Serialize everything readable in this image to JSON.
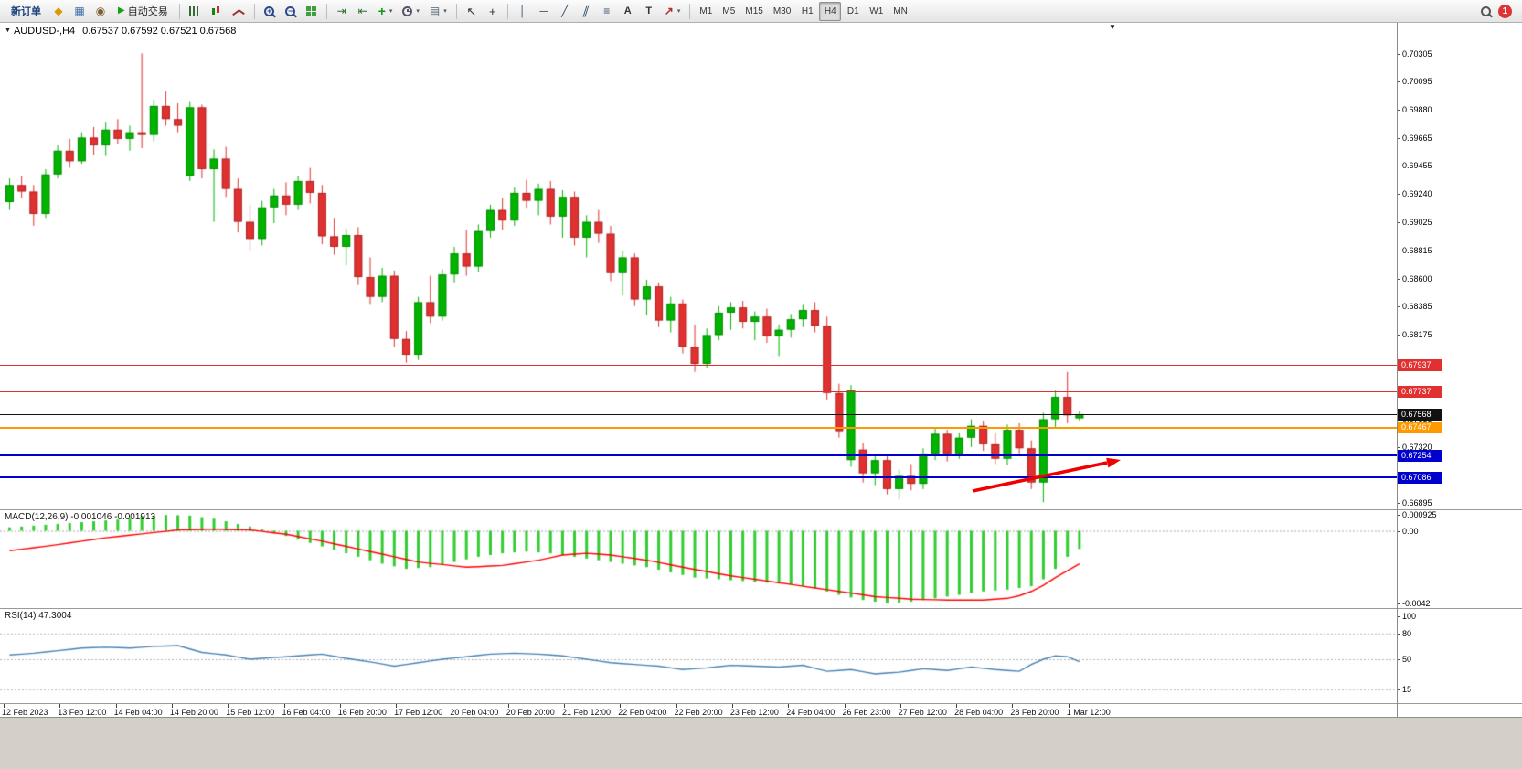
{
  "window": {
    "badge_count": "1"
  },
  "colors": {
    "up": "#00b400",
    "down": "#e03030",
    "macd_bar": "#32cd32",
    "macd_signal": "#ff0000",
    "rsi_line": "#4682b4",
    "arrow": "#f00000"
  },
  "icons": {
    "market_watch": "◆",
    "data_window": "▦",
    "navigator": "◉",
    "play": "▶",
    "zoom_in_sign": "+",
    "zoom_out_sign": "−",
    "auto_scroll": "⇥",
    "chart_shift": "⇤",
    "indicators_add": "+",
    "templates": "▤",
    "cursor": "↖",
    "crosshair": "+",
    "vertical_line": "│",
    "horizontal_line": "─",
    "trendline": "╱",
    "channel": "∥",
    "fibonacci": "≡",
    "text": "A",
    "text_label": "T",
    "arrows": "↗",
    "dropdown_caret": "▾",
    "symbol_caret": "▼",
    "shift_marker": "▼"
  },
  "toolbar": {
    "new_order_label": "新订单",
    "auto_trading_label": "自动交易",
    "timeframes": [
      "M1",
      "M5",
      "M15",
      "M30",
      "H1",
      "H4",
      "D1",
      "W1",
      "MN"
    ],
    "active_timeframe": "H4"
  },
  "chart": {
    "title_symbol": "AUDUSD-,H4",
    "title_ohlc": "0.67537 0.67592 0.67521 0.67568",
    "price_axis_labels": [
      "0.70305",
      "0.70095",
      "0.69880",
      "0.69665",
      "0.69455",
      "0.69240",
      "0.69025",
      "0.68815",
      "0.68600",
      "0.68385",
      "0.68175",
      "0.67960",
      "0.67745",
      "0.67535",
      "0.67320",
      "0.67105",
      "0.66895"
    ],
    "hlines": [
      {
        "name": "resistance-1",
        "price": 0.67937,
        "label": "0.67937",
        "color": "#e03030",
        "width": 1
      },
      {
        "name": "resistance-2",
        "price": 0.67737,
        "label": "0.67737",
        "color": "#e03030",
        "width": 1
      },
      {
        "name": "last-price",
        "price": 0.67568,
        "label": "0.67568",
        "color": "#111111",
        "width": 1
      },
      {
        "name": "pivot",
        "price": 0.67467,
        "label": "0.67467",
        "color": "#ff9900",
        "width": 2
      },
      {
        "name": "support-1",
        "price": 0.67254,
        "label": "0.67254",
        "color": "#0000cc",
        "width": 2
      },
      {
        "name": "support-2",
        "price": 0.67086,
        "label": "0.67086",
        "color": "#0000cc",
        "width": 2
      }
    ],
    "time_axis_labels": [
      "12 Feb 2023",
      "13 Feb 12:00",
      "14 Feb 04:00",
      "14 Feb 20:00",
      "15 Feb 12:00",
      "16 Feb 04:00",
      "16 Feb 20:00",
      "17 Feb 12:00",
      "20 Feb 04:00",
      "20 Feb 20:00",
      "21 Feb 12:00",
      "22 Feb 04:00",
      "22 Feb 20:00",
      "23 Feb 12:00",
      "24 Feb 04:00",
      "26 Feb 23:00",
      "27 Feb 12:00",
      "28 Feb 04:00",
      "28 Feb 20:00",
      "1 Mar 12:00"
    ]
  },
  "macd": {
    "label": "MACD(12,26,9) -0.001046 -0.001913",
    "axis_labels": [
      "0.000925",
      "0.00",
      "-0.0042"
    ]
  },
  "rsi": {
    "label": "RSI(14) 47.3004",
    "axis_labels": [
      "100",
      "80",
      "50",
      "15"
    ]
  },
  "chart_data": [
    {
      "type": "candlestick",
      "title": "AUDUSD-,H4",
      "ylim": [
        0.66895,
        0.70305
      ],
      "up_color": "#00b400",
      "down_color": "#e03030",
      "ohlc": [
        [
          0.6918,
          0.6936,
          0.6912,
          0.6931
        ],
        [
          0.6931,
          0.6938,
          0.6921,
          0.6926
        ],
        [
          0.6926,
          0.6931,
          0.69,
          0.6909
        ],
        [
          0.6909,
          0.6943,
          0.6906,
          0.6939
        ],
        [
          0.6939,
          0.6961,
          0.6936,
          0.6957
        ],
        [
          0.6957,
          0.6966,
          0.6944,
          0.6949
        ],
        [
          0.6949,
          0.6971,
          0.6947,
          0.6967
        ],
        [
          0.6967,
          0.6975,
          0.6954,
          0.6961
        ],
        [
          0.6961,
          0.6979,
          0.6953,
          0.6973
        ],
        [
          0.6973,
          0.6981,
          0.6962,
          0.6966
        ],
        [
          0.6966,
          0.6976,
          0.6957,
          0.6971
        ],
        [
          0.6971,
          0.7031,
          0.6959,
          0.6969
        ],
        [
          0.6969,
          0.6996,
          0.6964,
          0.6991
        ],
        [
          0.6991,
          0.7002,
          0.6976,
          0.6981
        ],
        [
          0.6981,
          0.6993,
          0.6971,
          0.6976
        ],
        [
          0.6938,
          0.6994,
          0.6934,
          0.699
        ],
        [
          0.699,
          0.6992,
          0.6936,
          0.6943
        ],
        [
          0.6943,
          0.6958,
          0.6903,
          0.6951
        ],
        [
          0.6951,
          0.696,
          0.6922,
          0.6928
        ],
        [
          0.6928,
          0.6936,
          0.6895,
          0.6903
        ],
        [
          0.6903,
          0.6916,
          0.6881,
          0.689
        ],
        [
          0.689,
          0.6919,
          0.6885,
          0.6914
        ],
        [
          0.6914,
          0.6928,
          0.6902,
          0.6923
        ],
        [
          0.6923,
          0.6933,
          0.6908,
          0.6916
        ],
        [
          0.6916,
          0.6938,
          0.6912,
          0.6934
        ],
        [
          0.6934,
          0.6944,
          0.6917,
          0.6925
        ],
        [
          0.6925,
          0.6931,
          0.6886,
          0.6892
        ],
        [
          0.6892,
          0.6906,
          0.6878,
          0.6884
        ],
        [
          0.6884,
          0.6898,
          0.687,
          0.6893
        ],
        [
          0.6893,
          0.6899,
          0.6855,
          0.6861
        ],
        [
          0.6861,
          0.6876,
          0.684,
          0.6846
        ],
        [
          0.6846,
          0.6868,
          0.6842,
          0.6862
        ],
        [
          0.6862,
          0.6866,
          0.6808,
          0.6814
        ],
        [
          0.6814,
          0.682,
          0.6796,
          0.6802
        ],
        [
          0.6802,
          0.6846,
          0.6798,
          0.6842
        ],
        [
          0.6842,
          0.6862,
          0.6826,
          0.6831
        ],
        [
          0.6831,
          0.6867,
          0.6828,
          0.6863
        ],
        [
          0.6863,
          0.6884,
          0.6857,
          0.6879
        ],
        [
          0.6879,
          0.6897,
          0.6862,
          0.6869
        ],
        [
          0.6869,
          0.6901,
          0.6865,
          0.6896
        ],
        [
          0.6896,
          0.6916,
          0.6891,
          0.6912
        ],
        [
          0.6912,
          0.6921,
          0.6897,
          0.6904
        ],
        [
          0.6904,
          0.6929,
          0.69,
          0.6925
        ],
        [
          0.6925,
          0.6935,
          0.6913,
          0.6919
        ],
        [
          0.6919,
          0.6932,
          0.6908,
          0.6928
        ],
        [
          0.6928,
          0.6934,
          0.6901,
          0.6907
        ],
        [
          0.6907,
          0.6927,
          0.6891,
          0.6922
        ],
        [
          0.6922,
          0.6926,
          0.6885,
          0.6891
        ],
        [
          0.6891,
          0.6908,
          0.6876,
          0.6903
        ],
        [
          0.6903,
          0.6912,
          0.6887,
          0.6894
        ],
        [
          0.6894,
          0.69,
          0.6858,
          0.6864
        ],
        [
          0.6864,
          0.6881,
          0.6847,
          0.6876
        ],
        [
          0.6876,
          0.6879,
          0.6839,
          0.6844
        ],
        [
          0.6844,
          0.6859,
          0.6832,
          0.6854
        ],
        [
          0.6854,
          0.6857,
          0.6823,
          0.6828
        ],
        [
          0.6828,
          0.6846,
          0.6819,
          0.6841
        ],
        [
          0.6841,
          0.6844,
          0.6803,
          0.6808
        ],
        [
          0.6808,
          0.6825,
          0.6789,
          0.6795
        ],
        [
          0.6795,
          0.6822,
          0.6792,
          0.6817
        ],
        [
          0.6817,
          0.6839,
          0.6813,
          0.6834
        ],
        [
          0.6834,
          0.6842,
          0.6821,
          0.6838
        ],
        [
          0.6838,
          0.6843,
          0.6822,
          0.6827
        ],
        [
          0.6827,
          0.6835,
          0.6813,
          0.6831
        ],
        [
          0.6831,
          0.6837,
          0.6811,
          0.6816
        ],
        [
          0.6816,
          0.6825,
          0.6801,
          0.6821
        ],
        [
          0.6821,
          0.6833,
          0.6815,
          0.6829
        ],
        [
          0.6829,
          0.684,
          0.6823,
          0.6836
        ],
        [
          0.6836,
          0.6842,
          0.6819,
          0.6824
        ],
        [
          0.6824,
          0.6831,
          0.6768,
          0.6773
        ],
        [
          0.6773,
          0.678,
          0.6739,
          0.6744
        ],
        [
          0.6722,
          0.6779,
          0.6717,
          0.6775
        ],
        [
          0.673,
          0.6735,
          0.6705,
          0.6712
        ],
        [
          0.6712,
          0.6727,
          0.6703,
          0.6722
        ],
        [
          0.6722,
          0.6725,
          0.6696,
          0.67
        ],
        [
          0.67,
          0.6715,
          0.6692,
          0.671
        ],
        [
          0.671,
          0.6719,
          0.6699,
          0.6704
        ],
        [
          0.6704,
          0.6731,
          0.67,
          0.6727
        ],
        [
          0.6727,
          0.6746,
          0.6722,
          0.6742
        ],
        [
          0.6742,
          0.6745,
          0.6721,
          0.6727
        ],
        [
          0.6727,
          0.6743,
          0.6723,
          0.6739
        ],
        [
          0.6739,
          0.6753,
          0.6732,
          0.6748
        ],
        [
          0.6748,
          0.6752,
          0.6729,
          0.6734
        ],
        [
          0.6734,
          0.6743,
          0.6719,
          0.6723
        ],
        [
          0.6723,
          0.6749,
          0.6718,
          0.6745
        ],
        [
          0.6745,
          0.675,
          0.6726,
          0.6731
        ],
        [
          0.6731,
          0.6737,
          0.67,
          0.6705
        ],
        [
          0.6705,
          0.6758,
          0.669,
          0.6753
        ],
        [
          0.6753,
          0.6775,
          0.6747,
          0.677
        ],
        [
          0.677,
          0.6789,
          0.675,
          0.6756
        ],
        [
          0.67537,
          0.67592,
          0.67521,
          0.67568
        ]
      ]
    },
    {
      "type": "bar",
      "title": "MACD(12,26,9)",
      "ylim": [
        -0.0042,
        0.000925
      ],
      "current_values": [
        -0.001046,
        -0.001913
      ],
      "values": [
        0.0002,
        0.00025,
        0.0003,
        0.00035,
        0.0004,
        0.00045,
        0.0005,
        0.00055,
        0.0006,
        0.00065,
        0.0007,
        0.00085,
        0.00088,
        0.00092,
        0.0009,
        0.00088,
        0.00079,
        0.0007,
        0.00055,
        0.0004,
        0.00025,
        0.0001,
        -0.0001,
        -0.0003,
        -0.0005,
        -0.0007,
        -0.0009,
        -0.0011,
        -0.0013,
        -0.0015,
        -0.0017,
        -0.0019,
        -0.00205,
        -0.0022,
        -0.00215,
        -0.0021,
        -0.00195,
        -0.0018,
        -0.00165,
        -0.0015,
        -0.0014,
        -0.0013,
        -0.00125,
        -0.0012,
        -0.00125,
        -0.0013,
        -0.0014,
        -0.0015,
        -0.0016,
        -0.0017,
        -0.0018,
        -0.0019,
        -0.002,
        -0.0021,
        -0.00225,
        -0.0024,
        -0.00255,
        -0.0027,
        -0.00275,
        -0.0028,
        -0.00285,
        -0.0029,
        -0.00295,
        -0.003,
        -0.00305,
        -0.0031,
        -0.0032,
        -0.0033,
        -0.0035,
        -0.0037,
        -0.00385,
        -0.004,
        -0.0041,
        -0.0042,
        -0.00415,
        -0.0041,
        -0.004,
        -0.0039,
        -0.0038,
        -0.0037,
        -0.0036,
        -0.0035,
        -0.00345,
        -0.0034,
        -0.0033,
        -0.0032,
        -0.0028,
        -0.0022,
        -0.0015,
        -0.001046
      ],
      "signal": [
        -0.00115,
        -0.00106,
        -0.00098,
        -0.00089,
        -0.0008,
        -0.0007,
        -0.0006,
        -0.0005,
        -0.0004,
        -0.00033,
        -0.00025,
        -0.00018,
        -0.0001,
        -3e-05,
        5e-05,
        7e-05,
        8e-05,
        0.0001,
        8e-05,
        7e-05,
        5e-05,
        -3e-05,
        -0.00012,
        -0.0002,
        -0.00033,
        -0.00047,
        -0.0006,
        -0.00075,
        -0.0009,
        -0.00105,
        -0.0012,
        -0.00135,
        -0.0015,
        -0.00165,
        -0.0018,
        -0.00188,
        -0.00195,
        -0.00203,
        -0.0021,
        -0.00207,
        -0.00203,
        -0.002,
        -0.0019,
        -0.0018,
        -0.0017,
        -0.00155,
        -0.0014,
        -0.00135,
        -0.0013,
        -0.00135,
        -0.0014,
        -0.0015,
        -0.0016,
        -0.0017,
        -0.00183,
        -0.00197,
        -0.0021,
        -0.00223,
        -0.00235,
        -0.00248,
        -0.0026,
        -0.0027,
        -0.0028,
        -0.0029,
        -0.003,
        -0.0031,
        -0.0032,
        -0.0033,
        -0.0034,
        -0.0035,
        -0.0036,
        -0.0037,
        -0.0038,
        -0.00385,
        -0.0039,
        -0.00395,
        -0.00397,
        -0.00398,
        -0.004,
        -0.004,
        -0.004,
        -0.004,
        -0.00395,
        -0.0039,
        -0.00375,
        -0.0035,
        -0.00315,
        -0.0027,
        -0.0023,
        -0.001913
      ]
    },
    {
      "type": "line",
      "title": "RSI(14)",
      "ylim": [
        0,
        100
      ],
      "levels": [
        80,
        50,
        15
      ],
      "current_value": 47.3004,
      "values": [
        55,
        56,
        57,
        58.5,
        60,
        61.5,
        63,
        63.5,
        64,
        63.5,
        63,
        64,
        65,
        65.5,
        66,
        62,
        58,
        56.5,
        55,
        52.5,
        50,
        51,
        52,
        53,
        54,
        55,
        56,
        53.5,
        51,
        49,
        47,
        44.5,
        42,
        44,
        46,
        48,
        50,
        51.5,
        53,
        54.5,
        56,
        56.5,
        57,
        56.5,
        56,
        55,
        54,
        52,
        50,
        48,
        46,
        45,
        44,
        43,
        42,
        40,
        38,
        39,
        40,
        41.5,
        43,
        42.5,
        42,
        41.5,
        41,
        42,
        43,
        39.5,
        36,
        37,
        38,
        35.5,
        33,
        34,
        35,
        37,
        39,
        38,
        37,
        39,
        41,
        39.5,
        38,
        37,
        36,
        44,
        50,
        54,
        53,
        47.3
      ]
    }
  ]
}
